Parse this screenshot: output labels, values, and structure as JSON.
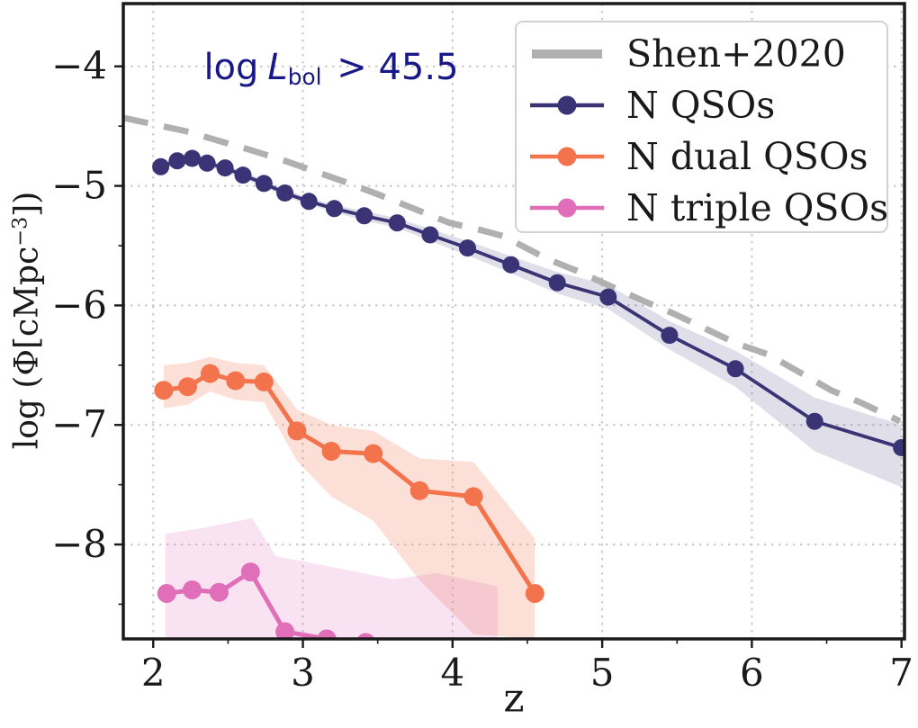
{
  "figure": {
    "annotation": {
      "prefix": "log",
      "symbol": "L",
      "subscript": "bol",
      "suffix": " > 45.5",
      "color": "#181889"
    },
    "x_axis": {
      "label": "z",
      "tick_labels": [
        "2",
        "3",
        "4",
        "5",
        "6",
        "7"
      ]
    },
    "y_axis": {
      "label_prefix": "log (Φ[cMpc",
      "label_sup": "−3",
      "label_suffix": "])",
      "tick_labels": [
        "−4",
        "−5",
        "−6",
        "−7",
        "−8"
      ]
    },
    "legend": {
      "items": [
        {
          "label": "Shen+2020",
          "style": "dash",
          "color": "#b0b0b0"
        },
        {
          "label": "N QSOs",
          "style": "line-dot",
          "color": "#3a3375"
        },
        {
          "label": "N dual QSOs",
          "style": "line-dot",
          "color": "#f3744c"
        },
        {
          "label": "N triple QSOs",
          "style": "line-dot",
          "color": "#e06eb8"
        }
      ]
    },
    "colors": {
      "frame": "#1a1a1a",
      "grid": "#c9c9c9",
      "tick_text": "#1a1a1a"
    }
  },
  "chart_data": {
    "type": "line",
    "title": "",
    "xlabel": "z",
    "ylabel": "log (Φ[cMpc−3])",
    "annotation": "log Lbol > 45.5",
    "xlim": [
      1.8,
      7.02
    ],
    "ylim": [
      -8.79,
      -3.475
    ],
    "x_ticks": [
      2,
      3,
      4,
      5,
      6,
      7
    ],
    "y_ticks": [
      -4,
      -5,
      -6,
      -7,
      -8
    ],
    "x_minor_ticks": [
      2.5,
      3.5,
      4.5,
      5.5,
      6.5
    ],
    "y_minor_ticks": [
      -4.5,
      -5.5,
      -6.5,
      -7.5,
      -8.5
    ],
    "grid": "dotted",
    "legend_position": "upper right",
    "series": [
      {
        "name": "Shen+2020",
        "style": "dashed",
        "color": "#b0b0b0",
        "linewidth": 7,
        "x": [
          1.8,
          2.21,
          2.65,
          2.88,
          3.31,
          3.52,
          3.98,
          4.19,
          4.34,
          4.63,
          4.83,
          5.27,
          5.48,
          5.9,
          6.11,
          6.53,
          6.74,
          6.99
        ],
        "y": [
          -4.43,
          -4.54,
          -4.7,
          -4.79,
          -4.98,
          -5.08,
          -5.31,
          -5.37,
          -5.42,
          -5.61,
          -5.71,
          -5.96,
          -6.07,
          -6.32,
          -6.41,
          -6.71,
          -6.82,
          -6.97
        ]
      },
      {
        "name": "N QSOs",
        "style": "line-dot",
        "color": "#3a3375",
        "band_opacity": 0.16,
        "linewidth": 3.8,
        "marker_r": 9.5,
        "x": [
          2.05,
          2.16,
          2.26,
          2.36,
          2.48,
          2.6,
          2.74,
          2.88,
          3.04,
          3.21,
          3.41,
          3.63,
          3.85,
          4.1,
          4.39,
          4.7,
          5.04,
          5.45,
          5.89,
          6.42,
          7.0
        ],
        "y": [
          -4.84,
          -4.79,
          -4.77,
          -4.81,
          -4.85,
          -4.91,
          -4.98,
          -5.06,
          -5.13,
          -5.19,
          -5.25,
          -5.31,
          -5.41,
          -5.52,
          -5.66,
          -5.81,
          -5.93,
          -6.25,
          -6.53,
          -6.97,
          -7.19
        ],
        "y_hi": [
          -4.81,
          -4.76,
          -4.74,
          -4.78,
          -4.82,
          -4.88,
          -4.95,
          -5.03,
          -5.1,
          -5.16,
          -5.21,
          -5.27,
          -5.36,
          -5.46,
          -5.59,
          -5.72,
          -5.83,
          -6.13,
          -6.38,
          -6.77,
          -7.0
        ],
        "y_lo": [
          -4.87,
          -4.82,
          -4.8,
          -4.84,
          -4.88,
          -4.94,
          -5.01,
          -5.09,
          -5.16,
          -5.22,
          -5.29,
          -5.35,
          -5.46,
          -5.58,
          -5.73,
          -5.9,
          -6.03,
          -6.37,
          -6.68,
          -7.22,
          -7.52
        ]
      },
      {
        "name": "N dual QSOs",
        "style": "line-dot",
        "color": "#f3744c",
        "band_opacity": 0.22,
        "linewidth": 5,
        "marker_r": 10.5,
        "x": [
          2.07,
          2.23,
          2.38,
          2.55,
          2.74,
          2.96,
          3.19,
          3.47,
          3.78,
          4.14,
          4.55
        ],
        "y": [
          -6.71,
          -6.68,
          -6.57,
          -6.63,
          -6.64,
          -7.05,
          -7.22,
          -7.24,
          -7.55,
          -7.6,
          -8.41
        ],
        "y_hi": [
          -6.5,
          -6.48,
          -6.43,
          -6.48,
          -6.5,
          -6.87,
          -7.0,
          -7.05,
          -7.28,
          -7.31,
          -7.95
        ],
        "y_lo": [
          -6.86,
          -6.83,
          -6.72,
          -6.79,
          -6.81,
          -7.3,
          -7.6,
          -7.8,
          -8.3,
          -8.75,
          -8.79
        ]
      },
      {
        "name": "N triple QSOs",
        "style": "line-dot",
        "color": "#e06eb8",
        "band_opacity": 0.2,
        "linewidth": 5,
        "marker_r": 10.5,
        "x": [
          2.09,
          2.26,
          2.44,
          2.65,
          2.88,
          3.16,
          3.42
        ],
        "y": [
          -8.41,
          -8.38,
          -8.4,
          -8.23,
          -8.73,
          -8.79,
          -8.82
        ],
        "band_x": [
          2.08,
          2.3,
          2.66,
          2.82,
          3.0,
          3.6,
          3.9,
          4.3
        ],
        "band_hi": [
          -7.91,
          -7.87,
          -7.78,
          -8.1,
          -8.14,
          -8.29,
          -8.24,
          -8.35
        ],
        "band_lo": [
          -8.85,
          -8.85,
          -8.85,
          -8.85,
          -8.85,
          -8.85,
          -8.85,
          -8.85
        ]
      }
    ]
  }
}
